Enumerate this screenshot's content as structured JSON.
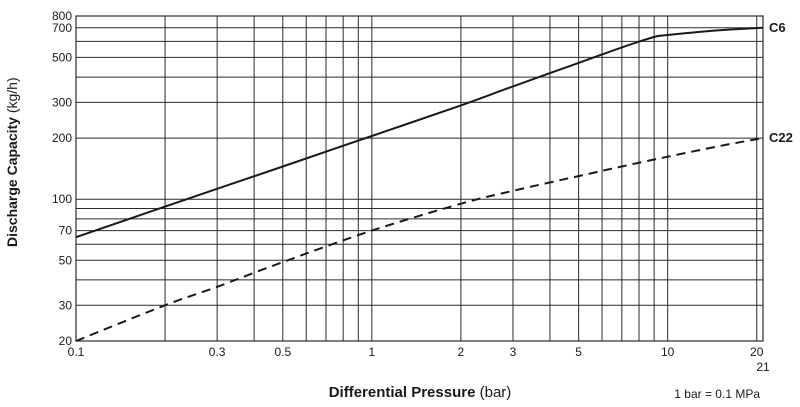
{
  "chart_data": {
    "type": "line",
    "title": "",
    "x_scale": "log",
    "y_scale": "log",
    "xlim": [
      0.1,
      21
    ],
    "ylim": [
      20,
      800
    ],
    "grid": true,
    "xlabel": {
      "main": "Differential Pressure",
      "unit": "(bar)"
    },
    "ylabel": {
      "main": "Discharge Capacity",
      "unit": "(kg/h)"
    },
    "note": "1 bar = 0.1 MPa",
    "x_ticks": [
      {
        "label": "0.1",
        "value": 0.1
      },
      {
        "label": "0.3",
        "value": 0.3
      },
      {
        "label": "0.5",
        "value": 0.5
      },
      {
        "label": "1",
        "value": 1
      },
      {
        "label": "2",
        "value": 2
      },
      {
        "label": "3",
        "value": 3
      },
      {
        "label": "5",
        "value": 5
      },
      {
        "label": "10",
        "value": 10
      },
      {
        "label": "20",
        "value": 20
      },
      {
        "label": "21",
        "value": 21
      }
    ],
    "x_grid": [
      0.1,
      0.2,
      0.3,
      0.4,
      0.5,
      0.6,
      0.7,
      0.8,
      0.9,
      1,
      2,
      3,
      4,
      5,
      6,
      7,
      8,
      9,
      10,
      20,
      21
    ],
    "y_ticks": [
      {
        "label": "20",
        "value": 20
      },
      {
        "label": "30",
        "value": 30
      },
      {
        "label": "50",
        "value": 50
      },
      {
        "label": "70",
        "value": 70
      },
      {
        "label": "100",
        "value": 100
      },
      {
        "label": "200",
        "value": 200
      },
      {
        "label": "300",
        "value": 300
      },
      {
        "label": "500",
        "value": 500
      },
      {
        "label": "700",
        "value": 700
      },
      {
        "label": "800",
        "value": 800
      }
    ],
    "y_grid": [
      20,
      30,
      40,
      50,
      60,
      70,
      80,
      90,
      100,
      200,
      300,
      400,
      500,
      600,
      700,
      800
    ],
    "series": [
      {
        "name": "C6",
        "style": "solid",
        "x": [
          0.1,
          0.2,
          0.5,
          1,
          2,
          3,
          5,
          7,
          9,
          10,
          15,
          21
        ],
        "y": [
          65,
          92,
          145,
          205,
          290,
          360,
          470,
          560,
          630,
          645,
          680,
          700
        ]
      },
      {
        "name": "C22",
        "style": "dashed",
        "x": [
          0.1,
          0.2,
          0.3,
          0.5,
          1,
          2,
          3,
          5,
          7,
          10,
          15,
          21
        ],
        "y": [
          20,
          30,
          37,
          49,
          70,
          95,
          110,
          130,
          145,
          162,
          183,
          200
        ]
      }
    ],
    "line_color": "#1a1a1a",
    "grid_color": "#2b2b2b"
  }
}
